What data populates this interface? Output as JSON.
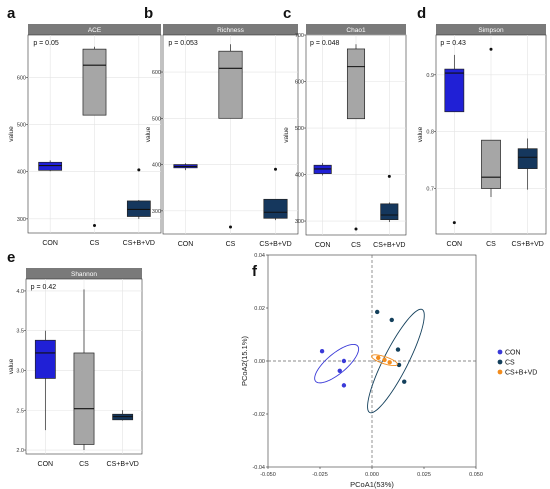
{
  "chart_data": [
    {
      "type": "box",
      "panel_letter": "a",
      "title": "ACE",
      "ylabel": "value",
      "pvalue_text": "p = 0.05",
      "ylim": [
        270,
        690
      ],
      "yticks": [
        300,
        400,
        500,
        600
      ],
      "grid": true,
      "groups": [
        {
          "name": "CON",
          "color": "#2020d6",
          "box": {
            "min": 401,
            "q1": 403,
            "median": 413,
            "q3": 420,
            "max": 424
          },
          "outliers": []
        },
        {
          "name": "CS",
          "color": "#a6a6a6",
          "box": {
            "min": 520,
            "q1": 520,
            "median": 626,
            "q3": 660,
            "max": 665
          },
          "outliers": [
            286
          ]
        },
        {
          "name": "CS+B+VD",
          "color": "#15375d",
          "box": {
            "min": 300,
            "q1": 305,
            "median": 320,
            "q3": 338,
            "max": 340
          },
          "outliers": [
            404
          ]
        }
      ]
    },
    {
      "type": "box",
      "panel_letter": "b",
      "title": "Richness",
      "ylabel": "value",
      "pvalue_text": "p = 0.053",
      "ylim": [
        250,
        680
      ],
      "yticks": [
        300,
        400,
        500,
        600
      ],
      "grid": true,
      "groups": [
        {
          "name": "CON",
          "color": "#2020d6",
          "box": {
            "min": 388,
            "q1": 393,
            "median": 396,
            "q3": 400,
            "max": 403
          },
          "outliers": []
        },
        {
          "name": "CS",
          "color": "#a6a6a6",
          "box": {
            "min": 500,
            "q1": 500,
            "median": 608,
            "q3": 645,
            "max": 660
          },
          "outliers": [
            265
          ]
        },
        {
          "name": "CS+B+VD",
          "color": "#15375d",
          "box": {
            "min": 280,
            "q1": 284,
            "median": 297,
            "q3": 325,
            "max": 325
          },
          "outliers": [
            390
          ]
        }
      ]
    },
    {
      "type": "box",
      "panel_letter": "c",
      "title": "Chao1",
      "ylabel": "value",
      "pvalue_text": "p = 0.048",
      "ylim": [
        270,
        700
      ],
      "yticks": [
        300,
        400,
        500,
        600,
        700
      ],
      "grid": true,
      "groups": [
        {
          "name": "CON",
          "color": "#2020d6",
          "box": {
            "min": 398,
            "q1": 402,
            "median": 412,
            "q3": 420,
            "max": 425
          },
          "outliers": []
        },
        {
          "name": "CS",
          "color": "#a6a6a6",
          "box": {
            "min": 520,
            "q1": 520,
            "median": 632,
            "q3": 670,
            "max": 680
          },
          "outliers": [
            283
          ]
        },
        {
          "name": "CS+B+VD",
          "color": "#15375d",
          "box": {
            "min": 298,
            "q1": 303,
            "median": 313,
            "q3": 337,
            "max": 340
          },
          "outliers": [
            396
          ]
        }
      ]
    },
    {
      "type": "box",
      "panel_letter": "d",
      "title": "Simpson",
      "ylabel": "value",
      "pvalue_text": "p = 0.43",
      "ylim": [
        0.62,
        0.97
      ],
      "yticks": [
        0.7,
        0.8,
        0.9
      ],
      "grid": true,
      "groups": [
        {
          "name": "CON",
          "color": "#2020d6",
          "box": {
            "min": 0.835,
            "q1": 0.835,
            "median": 0.903,
            "q3": 0.91,
            "max": 0.935
          },
          "outliers": [
            0.64
          ]
        },
        {
          "name": "CS",
          "color": "#a6a6a6",
          "box": {
            "min": 0.685,
            "q1": 0.7,
            "median": 0.72,
            "q3": 0.785,
            "max": 0.785
          },
          "outliers": [
            0.945
          ]
        },
        {
          "name": "CS+B+VD",
          "color": "#15375d",
          "box": {
            "min": 0.698,
            "q1": 0.735,
            "median": 0.755,
            "q3": 0.77,
            "max": 0.788
          },
          "outliers": []
        }
      ]
    },
    {
      "type": "box",
      "panel_letter": "e",
      "title": "Shannon",
      "ylabel": "value",
      "pvalue_text": "p = 0.42",
      "ylim": [
        1.95,
        4.15
      ],
      "yticks": [
        2.0,
        2.5,
        3.0,
        3.5,
        4.0
      ],
      "yticklabels": [
        "2.0",
        "2.5",
        "3.0",
        "3.5",
        "4.0"
      ],
      "grid": true,
      "groups": [
        {
          "name": "CON",
          "color": "#2020d6",
          "box": {
            "min": 2.25,
            "q1": 2.9,
            "median": 3.22,
            "q3": 3.38,
            "max": 3.5
          },
          "outliers": []
        },
        {
          "name": "CS",
          "color": "#a6a6a6",
          "box": {
            "min": 2.0,
            "q1": 2.07,
            "median": 2.52,
            "q3": 3.22,
            "max": 4.02
          },
          "outliers": []
        },
        {
          "name": "CS+B+VD",
          "color": "#15375d",
          "box": {
            "min": 2.37,
            "q1": 2.38,
            "median": 2.42,
            "q3": 2.45,
            "max": 2.5
          },
          "outliers": []
        }
      ]
    },
    {
      "type": "scatter",
      "panel_letter": "f",
      "xlabel": "PCoA1(53%)",
      "ylabel": "PCoA2(15.1%)",
      "xlim": [
        -0.05,
        0.05
      ],
      "ylim": [
        -0.04,
        0.04
      ],
      "xticks": [
        -0.05,
        -0.025,
        0.0,
        0.025,
        0.05
      ],
      "xticklabels": [
        "-0.050",
        "-0.025",
        "0.000",
        "0.025",
        "0.050"
      ],
      "yticks": [
        -0.04,
        -0.02,
        0.0,
        0.02,
        0.04
      ],
      "yticklabels": [
        "-0.04",
        "-0.02",
        "0.00",
        "0.02",
        "0.04"
      ],
      "grid": false,
      "legend_position": "right",
      "series": [
        {
          "name": "CON",
          "color": "#3a3ad8",
          "points": [
            [
              -0.024,
              0.0037
            ],
            [
              -0.0135,
              0.0
            ],
            [
              -0.0155,
              -0.0037
            ],
            [
              -0.0135,
              -0.0092
            ]
          ],
          "ellipse": {
            "cx": -0.017,
            "cy": -0.001,
            "rx": 0.0132,
            "ry": 0.0048,
            "angle_deg": 40
          }
        },
        {
          "name": "CS",
          "color": "#14405c",
          "points": [
            [
              0.0025,
              0.0185
            ],
            [
              0.0095,
              0.0155
            ],
            [
              0.0125,
              0.0043
            ],
            [
              0.013,
              -0.0015
            ],
            [
              0.0155,
              -0.0078
            ]
          ],
          "ellipse": {
            "cx": 0.0115,
            "cy": 0.0,
            "rx": 0.0278,
            "ry": 0.0058,
            "angle_deg": 63
          }
        },
        {
          "name": "CS+B+VD",
          "color": "#f28c1d",
          "points": [
            [
              0.003,
              0.0012
            ],
            [
              0.006,
              0.0004
            ],
            [
              0.0085,
              -0.0005
            ]
          ],
          "ellipse": {
            "cx": 0.006,
            "cy": 0.0003,
            "rx": 0.0065,
            "ry": 0.0017,
            "angle_deg": -18
          }
        }
      ]
    }
  ]
}
